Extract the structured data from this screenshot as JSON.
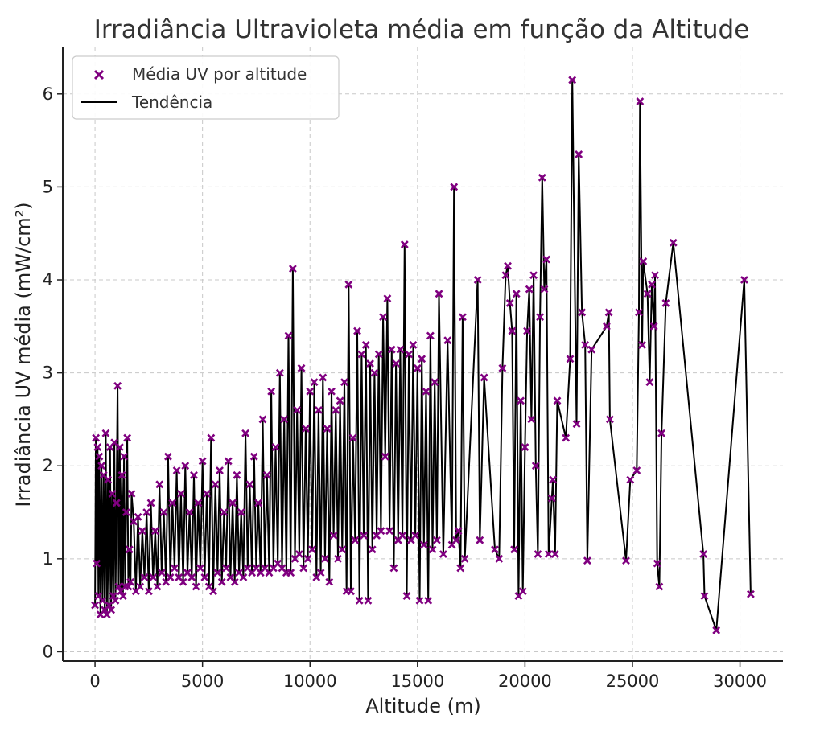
{
  "chart_data": {
    "type": "scatter",
    "title": "Irradiância Ultravioleta média em função da Altitude",
    "xlabel": "Altitude (m)",
    "ylabel": "Irradiância UV média (mW/cm²)",
    "xlim": [
      -1500,
      32000
    ],
    "ylim": [
      -0.1,
      6.5
    ],
    "xticks": [
      0,
      5000,
      10000,
      15000,
      20000,
      25000,
      30000
    ],
    "yticks": [
      0,
      1,
      2,
      3,
      4,
      5,
      6
    ],
    "grid": true,
    "legend_position": "top-left",
    "colors": {
      "points": "#800080",
      "line": "#000000"
    },
    "series": [
      {
        "name": "Média UV por altitude",
        "kind": "points",
        "x": [
          0,
          40,
          80,
          120,
          160,
          200,
          250,
          300,
          350,
          400,
          450,
          500,
          550,
          600,
          650,
          700,
          750,
          800,
          850,
          900,
          950,
          1000,
          1050,
          1100,
          1150,
          1200,
          1250,
          1300,
          1350,
          1400,
          1450,
          1500,
          1550,
          1600,
          1650,
          1700,
          1800,
          1900,
          2000,
          2100,
          2200,
          2300,
          2400,
          2500,
          2600,
          2700,
          2800,
          2900,
          3000,
          3100,
          3200,
          3300,
          3400,
          3500,
          3600,
          3700,
          3800,
          3900,
          4000,
          4100,
          4200,
          4300,
          4400,
          4500,
          4600,
          4700,
          4800,
          4900,
          5000,
          5100,
          5200,
          5300,
          5400,
          5500,
          5600,
          5700,
          5800,
          5900,
          6000,
          6100,
          6200,
          6300,
          6400,
          6500,
          6600,
          6700,
          6800,
          6900,
          7000,
          7100,
          7200,
          7300,
          7400,
          7500,
          7600,
          7700,
          7800,
          7900,
          8000,
          8100,
          8200,
          8300,
          8400,
          8500,
          8600,
          8700,
          8800,
          8900,
          9000,
          9100,
          9200,
          9300,
          9400,
          9500,
          9600,
          9700,
          9800,
          9900,
          10000,
          10100,
          10200,
          10300,
          10400,
          10500,
          10600,
          10700,
          10800,
          10900,
          11000,
          11100,
          11200,
          11300,
          11400,
          11500,
          11600,
          11700,
          11800,
          11900,
          12000,
          12100,
          12200,
          12300,
          12400,
          12500,
          12600,
          12700,
          12800,
          12900,
          13000,
          13100,
          13200,
          13300,
          13400,
          13500,
          13600,
          13700,
          13800,
          13900,
          14000,
          14100,
          14200,
          14300,
          14400,
          14500,
          14600,
          14700,
          14800,
          14900,
          15000,
          15100,
          15200,
          15300,
          15400,
          15500,
          15600,
          15700,
          15800,
          15900,
          16000,
          16200,
          16400,
          16600,
          16700,
          16800,
          16900,
          17000,
          17100,
          17200,
          17800,
          17900,
          18100,
          18600,
          18800,
          18950,
          19100,
          19200,
          19300,
          19400,
          19500,
          19600,
          19700,
          19800,
          19900,
          20000,
          20100,
          20200,
          20300,
          20400,
          20500,
          20600,
          20700,
          20800,
          20900,
          21000,
          21100,
          21250,
          21300,
          21400,
          21500,
          21900,
          22100,
          22200,
          22400,
          22500,
          22650,
          22800,
          22900,
          23100,
          23800,
          23900,
          23950,
          24700,
          24900,
          25200,
          25300,
          25350,
          25450,
          25500,
          25700,
          25800,
          25900,
          26000,
          26050,
          26150,
          26250,
          26350,
          26550,
          26900,
          28300,
          28350,
          28900,
          30200,
          30500
        ],
        "y": [
          0.5,
          2.3,
          0.95,
          2.2,
          0.6,
          2.1,
          0.4,
          2.0,
          0.55,
          1.9,
          0.45,
          2.35,
          0.4,
          1.85,
          0.5,
          2.2,
          0.45,
          1.7,
          0.6,
          2.25,
          0.55,
          1.6,
          2.86,
          0.7,
          2.2,
          0.65,
          1.9,
          0.6,
          2.1,
          0.7,
          1.5,
          2.3,
          0.7,
          1.1,
          0.75,
          1.7,
          1.4,
          0.65,
          1.45,
          0.7,
          1.3,
          0.8,
          1.5,
          0.65,
          1.6,
          0.8,
          1.3,
          0.7,
          1.8,
          0.85,
          1.5,
          0.75,
          2.1,
          0.8,
          1.6,
          0.9,
          1.95,
          0.8,
          1.7,
          0.75,
          2.0,
          0.85,
          1.5,
          0.8,
          1.9,
          0.7,
          1.6,
          0.9,
          2.05,
          0.8,
          1.7,
          0.7,
          2.3,
          0.65,
          1.8,
          0.85,
          1.95,
          0.75,
          1.5,
          0.9,
          2.05,
          0.8,
          1.6,
          0.75,
          1.9,
          0.85,
          1.5,
          0.8,
          2.35,
          0.9,
          1.8,
          0.85,
          2.1,
          0.9,
          1.6,
          0.85,
          2.5,
          0.9,
          1.9,
          0.85,
          2.8,
          0.9,
          2.2,
          0.95,
          3.0,
          0.9,
          2.5,
          0.85,
          3.4,
          0.85,
          4.12,
          1.0,
          2.6,
          1.05,
          3.05,
          0.9,
          2.4,
          1.0,
          2.8,
          1.1,
          2.9,
          0.8,
          2.6,
          0.85,
          2.95,
          1.0,
          2.4,
          0.75,
          2.8,
          1.25,
          2.6,
          1.0,
          2.7,
          1.1,
          2.9,
          0.65,
          3.95,
          0.65,
          2.3,
          1.2,
          3.45,
          0.55,
          3.2,
          1.25,
          3.3,
          0.55,
          3.1,
          1.1,
          3.0,
          1.25,
          3.2,
          1.3,
          3.6,
          2.1,
          3.8,
          1.3,
          3.25,
          0.9,
          3.1,
          1.2,
          3.25,
          1.25,
          4.38,
          0.6,
          3.2,
          1.2,
          3.3,
          1.25,
          3.05,
          0.55,
          3.15,
          1.15,
          2.8,
          0.55,
          3.4,
          1.1,
          2.9,
          1.2,
          3.85,
          1.05,
          3.35,
          1.15,
          5.0,
          1.2,
          1.3,
          0.9,
          3.6,
          1.0,
          4.0,
          1.2,
          2.95,
          1.1,
          1.0,
          3.05,
          4.05,
          4.15,
          3.75,
          3.45,
          1.1,
          3.85,
          0.6,
          2.7,
          0.65,
          2.2,
          3.45,
          3.9,
          2.5,
          4.05,
          2.0,
          1.05,
          3.6,
          5.1,
          3.9,
          4.22,
          1.05,
          1.65,
          1.85,
          1.05,
          2.7,
          2.3,
          3.15,
          6.15,
          2.45,
          5.35,
          3.65,
          3.3,
          0.98,
          3.25,
          3.5,
          3.65,
          2.5,
          0.98,
          1.85,
          1.95,
          3.65,
          5.92,
          3.3,
          4.2,
          3.85,
          2.9,
          3.95,
          3.5,
          4.05,
          0.95,
          0.7,
          2.35,
          3.75,
          4.4,
          1.05,
          0.6,
          0.23,
          4.0,
          0.62
        ]
      },
      {
        "name": "Tendência",
        "kind": "line"
      }
    ]
  }
}
